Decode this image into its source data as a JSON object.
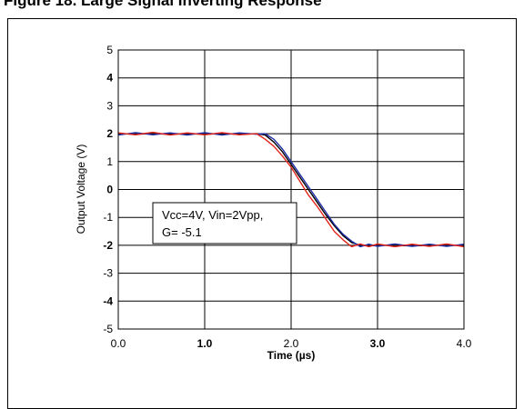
{
  "caption": "Figure 18. Large Signal Inverting Response",
  "chart_data": {
    "type": "line",
    "title": "",
    "xlabel": "Time (µs)",
    "ylabel": "Output Voltage (V)",
    "xlim": [
      0,
      4
    ],
    "ylim": [
      -5,
      5
    ],
    "x_ticks": [
      "0.0",
      "1.0",
      "2.0",
      "3.0",
      "4.0"
    ],
    "x_ticks_bold": [
      false,
      true,
      false,
      true,
      false
    ],
    "y_ticks": [
      "5",
      "4",
      "3",
      "2",
      "1",
      "0",
      "-1",
      "-2",
      "-3",
      "-4",
      "-5"
    ],
    "y_ticks_bold": [
      false,
      true,
      false,
      true,
      false,
      true,
      false,
      true,
      false,
      true,
      false
    ],
    "grid": true,
    "annotation": {
      "line1": "Vcc=4V, Vin=2Vpp,",
      "line2": "G= -5.1",
      "placement": "center-left"
    },
    "series": [
      {
        "color": "#000000",
        "x": [
          0,
          0.2,
          0.4,
          0.6,
          0.8,
          1.0,
          1.2,
          1.4,
          1.6,
          1.7,
          1.8,
          1.9,
          2.0,
          2.1,
          2.2,
          2.3,
          2.4,
          2.5,
          2.6,
          2.7,
          2.8,
          2.9,
          3.0,
          3.2,
          3.4,
          3.6,
          3.8,
          4.0
        ],
        "y": [
          2.0,
          1.98,
          2.0,
          1.98,
          2.0,
          1.98,
          2.0,
          1.98,
          2.0,
          1.95,
          1.7,
          1.35,
          0.9,
          0.45,
          0.0,
          -0.45,
          -0.9,
          -1.3,
          -1.65,
          -1.9,
          -2.0,
          -2.02,
          -2.0,
          -2.0,
          -2.02,
          -2.0,
          -2.0,
          -2.0
        ]
      },
      {
        "color": "#1f2fa8",
        "x": [
          0,
          0.2,
          0.4,
          0.6,
          0.8,
          1.0,
          1.2,
          1.4,
          1.6,
          1.7,
          1.8,
          1.9,
          2.0,
          2.1,
          2.2,
          2.3,
          2.4,
          2.5,
          2.6,
          2.7,
          2.8,
          2.9,
          3.0,
          3.2,
          3.4,
          3.6,
          3.8,
          4.0
        ],
        "y": [
          1.95,
          2.04,
          1.96,
          2.03,
          1.95,
          2.04,
          1.95,
          2.03,
          1.98,
          2.0,
          1.8,
          1.45,
          1.0,
          0.55,
          0.1,
          -0.35,
          -0.8,
          -1.25,
          -1.6,
          -1.85,
          -2.05,
          -1.96,
          -2.04,
          -1.95,
          -2.04,
          -1.96,
          -2.04,
          -1.96
        ]
      },
      {
        "color": "#e3241b",
        "x": [
          0,
          0.2,
          0.4,
          0.6,
          0.8,
          1.0,
          1.2,
          1.4,
          1.6,
          1.7,
          1.8,
          1.9,
          2.0,
          2.1,
          2.2,
          2.3,
          2.4,
          2.5,
          2.6,
          2.7,
          2.8,
          2.9,
          3.0,
          3.2,
          3.4,
          3.6,
          3.8,
          4.0
        ],
        "y": [
          2.03,
          1.96,
          2.05,
          1.95,
          2.03,
          1.96,
          2.04,
          1.96,
          2.0,
          1.8,
          1.55,
          1.2,
          0.8,
          0.3,
          -0.2,
          -0.6,
          -1.05,
          -1.5,
          -1.8,
          -2.05,
          -1.95,
          -2.05,
          -1.95,
          -2.05,
          -1.96,
          -2.04,
          -1.95,
          -2.05
        ]
      }
    ]
  }
}
